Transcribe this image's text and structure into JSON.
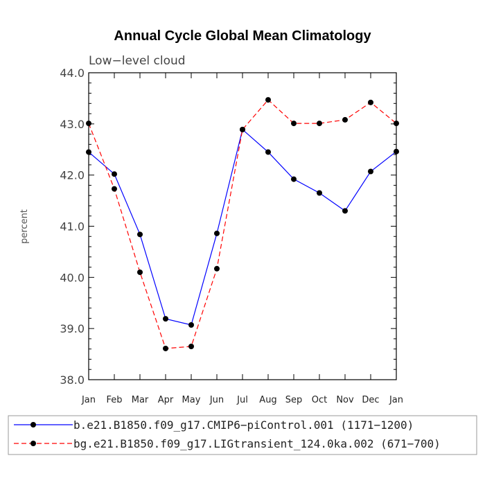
{
  "chart_data": {
    "type": "line",
    "title": "Annual Cycle Global Mean Climatology",
    "subtitle": "Low−level cloud",
    "xlabel": "",
    "ylabel": "percent",
    "categories": [
      "Jan",
      "Feb",
      "Mar",
      "Apr",
      "May",
      "Jun",
      "Jul",
      "Aug",
      "Sep",
      "Oct",
      "Nov",
      "Dec",
      "Jan"
    ],
    "yticks": [
      "38.0",
      "39.0",
      "40.0",
      "41.0",
      "42.0",
      "43.0",
      "44.0"
    ],
    "ylim": [
      38.0,
      44.0
    ],
    "grid": false,
    "legend_position": "bottom",
    "series": [
      {
        "name": "b.e21.B1850.f09_g17.CMIP6−piControl.001 (1171−1200)",
        "color": "#0000ff",
        "line_style": "solid",
        "marker": "filled-circle",
        "values": [
          42.45,
          42.02,
          40.84,
          39.19,
          39.07,
          40.86,
          42.89,
          42.45,
          41.92,
          41.65,
          41.3,
          42.07,
          42.46
        ]
      },
      {
        "name": "bg.e21.B1850.f09_g17.LIGtransient_124.0ka.002 (671−700)",
        "color": "#ff0000",
        "line_style": "dashed",
        "marker": "filled-circle",
        "values": [
          43.01,
          41.73,
          40.1,
          38.61,
          38.65,
          40.17,
          42.89,
          43.47,
          43.01,
          43.01,
          43.08,
          43.42,
          43.01
        ]
      }
    ]
  }
}
